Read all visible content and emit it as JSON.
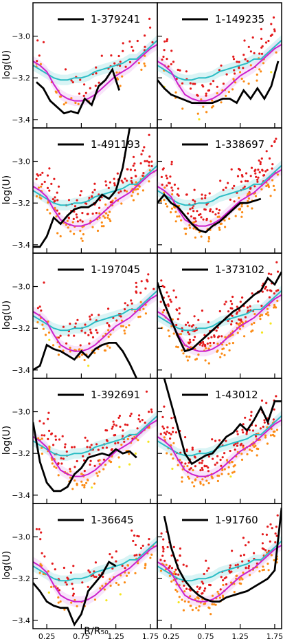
{
  "chart_data": {
    "type": "line",
    "layout": {
      "rows": 5,
      "cols": 2,
      "sharex": true,
      "sharey": true
    },
    "xlabel": "R/R₅₀",
    "ylabel": "log(U)",
    "xlim": [
      0.05,
      1.85
    ],
    "ylim": [
      -3.44,
      -2.84
    ],
    "xticks": [
      0.25,
      0.75,
      1.25,
      1.75
    ],
    "xtick_labels": [
      "0.25",
      "0.75",
      "1.25",
      "1.75"
    ],
    "yticks": [
      -3.4,
      -3.2,
      -3.0
    ],
    "ytick_labels": [
      "−3.4",
      "−3.2",
      "−3.0"
    ],
    "colors": {
      "galaxy_line": "#000000",
      "mean_cyan": "#2bbcc4",
      "mean_magenta": "#cc1fcc",
      "band_cyan": "#bfecef",
      "band_magenta": "#f3d3f6",
      "spaxel_red": "#e41a1c",
      "spaxel_orange": "#fb8a14",
      "spaxel_yellow": "#f5e51d",
      "spaxel_cyan": "#7ff5f0"
    },
    "reference_series": [
      {
        "color": "#2bbcc4",
        "x": [
          0.05,
          0.15,
          0.25,
          0.35,
          0.45,
          0.55,
          0.65,
          0.75,
          0.85,
          0.95,
          1.05,
          1.15,
          1.25,
          1.35,
          1.45,
          1.55,
          1.65,
          1.75,
          1.85
        ],
        "y": [
          -3.14,
          -3.16,
          -3.18,
          -3.2,
          -3.21,
          -3.21,
          -3.2,
          -3.2,
          -3.19,
          -3.17,
          -3.16,
          -3.15,
          -3.14,
          -3.13,
          -3.11,
          -3.11,
          -3.08,
          -3.05,
          -3.02
        ]
      },
      {
        "color": "#cc1fcc",
        "x": [
          0.05,
          0.15,
          0.25,
          0.35,
          0.45,
          0.55,
          0.65,
          0.75,
          0.85,
          0.95,
          1.05,
          1.15,
          1.25,
          1.35,
          1.45,
          1.55,
          1.65,
          1.75,
          1.85
        ],
        "y": [
          -3.12,
          -3.14,
          -3.17,
          -3.23,
          -3.28,
          -3.3,
          -3.31,
          -3.31,
          -3.3,
          -3.28,
          -3.25,
          -3.22,
          -3.19,
          -3.17,
          -3.15,
          -3.12,
          -3.09,
          -3.06,
          -3.04
        ]
      }
    ],
    "panels": [
      {
        "id": "1-379241",
        "series": [
          {
            "name": "1-379241",
            "x": [
              0.1,
              0.2,
              0.3,
              0.4,
              0.5,
              0.6,
              0.7,
              0.8,
              0.9,
              1.0,
              1.1,
              1.2,
              1.3
            ],
            "y": [
              -3.22,
              -3.25,
              -3.31,
              -3.34,
              -3.37,
              -3.36,
              -3.37,
              -3.3,
              -3.33,
              -3.24,
              -3.21,
              -3.16,
              -3.26
            ]
          }
        ]
      },
      {
        "id": "1-149235",
        "series": [
          {
            "name": "1-149235",
            "x": [
              0.05,
              0.15,
              0.25,
              0.4,
              0.55,
              0.7,
              0.85,
              1.0,
              1.1,
              1.2,
              1.3,
              1.4,
              1.5,
              1.6,
              1.7,
              1.8
            ],
            "y": [
              -3.21,
              -3.25,
              -3.28,
              -3.3,
              -3.32,
              -3.32,
              -3.32,
              -3.3,
              -3.3,
              -3.32,
              -3.26,
              -3.3,
              -3.25,
              -3.3,
              -3.24,
              -3.12
            ]
          }
        ]
      },
      {
        "id": "1-491193",
        "series": [
          {
            "name": "1-491193",
            "x": [
              0.05,
              0.15,
              0.25,
              0.35,
              0.45,
              0.55,
              0.65,
              0.75,
              0.85,
              0.95,
              1.05,
              1.15,
              1.25,
              1.35,
              1.45
            ],
            "y": [
              -3.41,
              -3.41,
              -3.36,
              -3.27,
              -3.3,
              -3.26,
              -3.23,
              -3.22,
              -3.22,
              -3.2,
              -3.16,
              -3.18,
              -3.14,
              -3.03,
              -2.84
            ]
          }
        ]
      },
      {
        "id": "1-338697",
        "series": [
          {
            "name": "1-338697",
            "x": [
              0.05,
              0.15,
              0.25,
              0.35,
              0.45,
              0.55,
              0.65,
              0.75,
              0.85,
              0.95,
              1.05,
              1.15,
              1.25,
              1.35,
              1.45,
              1.55
            ],
            "y": [
              -3.2,
              -3.16,
              -3.2,
              -3.22,
              -3.26,
              -3.3,
              -3.33,
              -3.34,
              -3.31,
              -3.29,
              -3.26,
              -3.23,
              -3.2,
              -3.2,
              -3.19,
              -3.18
            ]
          }
        ]
      },
      {
        "id": "1-197045",
        "series": [
          {
            "name": "1-197045",
            "x": [
              0.05,
              0.15,
              0.25,
              0.35,
              0.45,
              0.55,
              0.65,
              0.75,
              0.85,
              0.95,
              1.05,
              1.15,
              1.25,
              1.35,
              1.45,
              1.55
            ],
            "y": [
              -3.4,
              -3.38,
              -3.28,
              -3.3,
              -3.31,
              -3.33,
              -3.35,
              -3.31,
              -3.34,
              -3.3,
              -3.28,
              -3.27,
              -3.27,
              -3.31,
              -3.37,
              -3.44
            ]
          }
        ]
      },
      {
        "id": "1-373102",
        "series": [
          {
            "name": "1-373102",
            "x": [
              0.05,
              0.15,
              0.25,
              0.35,
              0.45,
              0.55,
              0.65,
              0.75,
              0.85,
              0.95,
              1.05,
              1.15,
              1.25,
              1.35,
              1.45,
              1.55,
              1.65,
              1.75,
              1.85
            ],
            "y": [
              -2.98,
              -3.08,
              -3.16,
              -3.24,
              -3.31,
              -3.3,
              -3.27,
              -3.24,
              -3.21,
              -3.18,
              -3.15,
              -3.12,
              -3.1,
              -3.07,
              -3.04,
              -3.02,
              -2.96,
              -2.99,
              -2.93
            ]
          }
        ]
      },
      {
        "id": "1-392691",
        "series": [
          {
            "name": "1-392691",
            "x": [
              0.05,
              0.15,
              0.25,
              0.35,
              0.45,
              0.55,
              0.65,
              0.75,
              0.85,
              0.95,
              1.05,
              1.15,
              1.25,
              1.35,
              1.45,
              1.55
            ],
            "y": [
              -3.05,
              -3.24,
              -3.34,
              -3.38,
              -3.38,
              -3.36,
              -3.3,
              -3.27,
              -3.22,
              -3.21,
              -3.2,
              -3.21,
              -3.18,
              -3.2,
              -3.19,
              -3.22
            ]
          }
        ]
      },
      {
        "id": "1-43012",
        "series": [
          {
            "name": "1-43012",
            "x": [
              0.15,
              0.25,
              0.35,
              0.45,
              0.55,
              0.65,
              0.75,
              0.85,
              0.95,
              1.05,
              1.15,
              1.25,
              1.35,
              1.45,
              1.55,
              1.65,
              1.75,
              1.85
            ],
            "y": [
              -2.84,
              -2.96,
              -3.08,
              -3.2,
              -3.25,
              -3.23,
              -3.21,
              -3.2,
              -3.16,
              -3.12,
              -3.1,
              -3.06,
              -3.09,
              -3.04,
              -2.98,
              -3.05,
              -2.95,
              -2.95
            ]
          }
        ]
      },
      {
        "id": "1-36645",
        "series": [
          {
            "name": "1-36645",
            "x": [
              0.05,
              0.15,
              0.25,
              0.35,
              0.45,
              0.55,
              0.65,
              0.75,
              0.85,
              0.95,
              1.05,
              1.15,
              1.25
            ],
            "y": [
              -3.22,
              -3.26,
              -3.31,
              -3.33,
              -3.34,
              -3.34,
              -3.42,
              -3.37,
              -3.26,
              -3.22,
              -3.18,
              -3.12,
              -3.14
            ]
          }
        ]
      },
      {
        "id": "1-91760",
        "series": [
          {
            "name": "1-91760",
            "x": [
              0.15,
              0.25,
              0.35,
              0.45,
              0.55,
              0.65,
              0.75,
              0.85,
              0.95,
              1.05,
              1.15,
              1.25,
              1.35,
              1.45,
              1.55,
              1.65,
              1.75,
              1.85
            ],
            "y": [
              -2.9,
              -3.05,
              -3.15,
              -3.21,
              -3.25,
              -3.28,
              -3.3,
              -3.31,
              -3.31,
              -3.29,
              -3.28,
              -3.27,
              -3.26,
              -3.24,
              -3.22,
              -3.2,
              -3.16,
              -2.86
            ]
          }
        ]
      }
    ]
  }
}
